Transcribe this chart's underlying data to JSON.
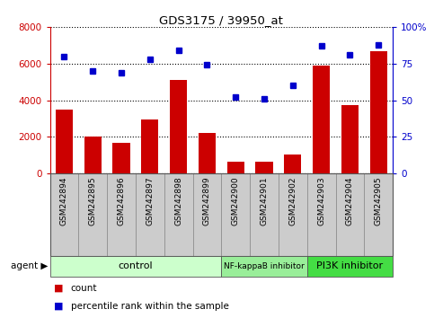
{
  "title": "GDS3175 / 39950_at",
  "samples": [
    "GSM242894",
    "GSM242895",
    "GSM242896",
    "GSM242897",
    "GSM242898",
    "GSM242899",
    "GSM242900",
    "GSM242901",
    "GSM242902",
    "GSM242903",
    "GSM242904",
    "GSM242905"
  ],
  "counts": [
    3500,
    2000,
    1650,
    2950,
    5100,
    2200,
    650,
    620,
    1050,
    5900,
    3750,
    6700
  ],
  "percentile": [
    80,
    70,
    69,
    78,
    84,
    74,
    52,
    51,
    60,
    87,
    81,
    88
  ],
  "ylim_left": [
    0,
    8000
  ],
  "ylim_right": [
    0,
    100
  ],
  "yticks_left": [
    0,
    2000,
    4000,
    6000,
    8000
  ],
  "yticks_right": [
    0,
    25,
    50,
    75,
    100
  ],
  "bar_color": "#cc0000",
  "dot_color": "#0000cc",
  "agent_groups": [
    {
      "label": "control",
      "start": 0,
      "end": 6,
      "color": "#ccffcc"
    },
    {
      "label": "NF-kappaB inhibitor",
      "start": 6,
      "end": 9,
      "color": "#99ee99"
    },
    {
      "label": "PI3K inhibitor",
      "start": 9,
      "end": 12,
      "color": "#44dd44"
    }
  ],
  "legend_count_label": "count",
  "legend_pct_label": "percentile rank within the sample",
  "agent_label": "agent",
  "left_ylabel_color": "#cc0000",
  "right_ylabel_color": "#0000cc",
  "sample_box_color": "#cccccc",
  "sample_box_edge": "#888888"
}
